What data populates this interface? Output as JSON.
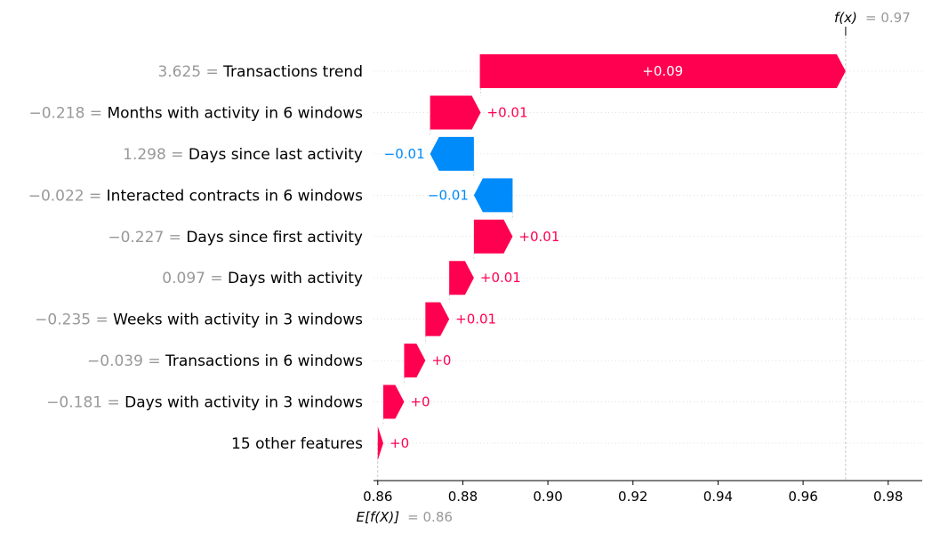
{
  "chart_data": {
    "type": "waterfall",
    "base_value": 0.86,
    "output_value": 0.97,
    "base_label": "E[f(X)]",
    "base_value_text": "= 0.86",
    "output_label": "f(x)",
    "output_value_text": "= 0.97",
    "xlim": [
      0.859,
      0.988
    ],
    "x_ticks": [
      0.86,
      0.88,
      0.9,
      0.92,
      0.94,
      0.96,
      0.98
    ],
    "x_tick_labels": [
      "0.86",
      "0.88",
      "0.90",
      "0.92",
      "0.94",
      "0.96",
      "0.98"
    ],
    "features": [
      {
        "value_text": "3.625 =",
        "name": "Transactions trend",
        "start": 0.884,
        "end": 0.97,
        "label": "+0.09",
        "sign": "pos"
      },
      {
        "value_text": "−0.218 =",
        "name": "Months with activity in 6 windows",
        "start": 0.8723,
        "end": 0.8842,
        "label": "+0.01",
        "sign": "pos"
      },
      {
        "value_text": "1.298 =",
        "name": "Days since last activity",
        "start": 0.8826,
        "end": 0.8723,
        "label": "−0.01",
        "sign": "neg"
      },
      {
        "value_text": "−0.022 =",
        "name": "Interacted contracts in 6 windows",
        "start": 0.8917,
        "end": 0.8826,
        "label": "−0.01",
        "sign": "neg"
      },
      {
        "value_text": "−0.227 =",
        "name": "Days since first activity",
        "start": 0.8826,
        "end": 0.8917,
        "label": "+0.01",
        "sign": "pos"
      },
      {
        "value_text": "0.097 =",
        "name": "Days with activity",
        "start": 0.8768,
        "end": 0.8826,
        "label": "+0.01",
        "sign": "pos"
      },
      {
        "value_text": "−0.235 =",
        "name": "Weeks with activity in 3 windows",
        "start": 0.8712,
        "end": 0.8768,
        "label": "+0.01",
        "sign": "pos"
      },
      {
        "value_text": "−0.039 =",
        "name": "Transactions in 6 windows",
        "start": 0.8662,
        "end": 0.8712,
        "label": "+0",
        "sign": "pos"
      },
      {
        "value_text": "−0.181 =",
        "name": "Days with activity in 3 windows",
        "start": 0.8613,
        "end": 0.8662,
        "label": "+0",
        "sign": "pos"
      },
      {
        "value_text": "",
        "name": "15 other features",
        "start": 0.86,
        "end": 0.8613,
        "label": "+0",
        "sign": "pos"
      }
    ],
    "colors": {
      "positive": "#ff0051",
      "negative": "#008bfb",
      "feature_value": "#999999"
    }
  }
}
